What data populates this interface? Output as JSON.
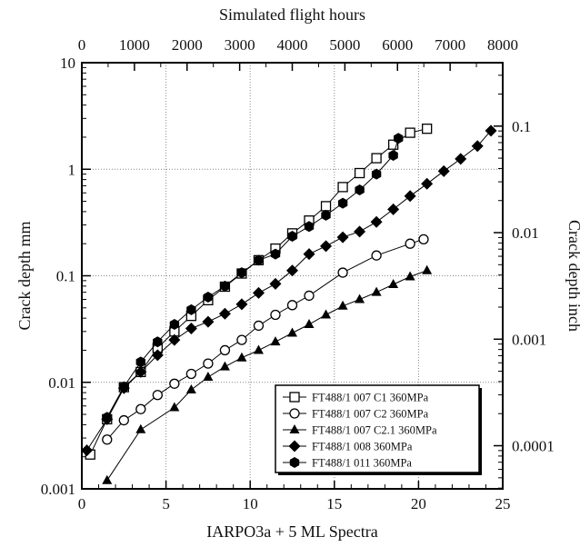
{
  "chart_data": {
    "type": "scatter",
    "xlabel": "IARPO3a + 5 ML Spectra",
    "ylabel": "Crack depth mm",
    "top_xlabel": "Simulated flight hours",
    "right_ylabel": "Crack depth inch",
    "xlim": [
      0,
      25
    ],
    "ylim": [
      0.001,
      10
    ],
    "yscale": "log",
    "xticks": [
      "0",
      "5",
      "10",
      "15",
      "20",
      "25"
    ],
    "yticks": [
      "0.001",
      "0.01",
      "0.1",
      "1",
      "10"
    ],
    "top_xticks": [
      "0",
      "1000",
      "2000",
      "3000",
      "4000",
      "5000",
      "6000",
      "7000",
      "8000"
    ],
    "top_xlim": [
      0,
      8000
    ],
    "right_yticks": [
      "0.0001",
      "0.001",
      "0.01",
      "0.1"
    ],
    "grid": true,
    "legend_position": "bottom-right",
    "series": [
      {
        "name": "FT488/1 007 C1 360MPa",
        "marker": "square-open",
        "x": [
          0.5,
          1.5,
          2.5,
          3.5,
          4.5,
          5.5,
          6.5,
          7.5,
          8.5,
          9.5,
          10.5,
          11.5,
          12.5,
          13.5,
          14.5,
          15.5,
          16.5,
          17.5,
          18.5,
          19.5,
          20.5
        ],
        "y": [
          0.0021,
          0.0045,
          0.009,
          0.0125,
          0.021,
          0.03,
          0.042,
          0.059,
          0.079,
          0.105,
          0.14,
          0.18,
          0.25,
          0.33,
          0.45,
          0.68,
          0.92,
          1.27,
          1.7,
          2.2,
          2.4
        ]
      },
      {
        "name": "FT488/1 007 C2 360MPa",
        "marker": "circle-open",
        "x": [
          1.5,
          2.5,
          3.5,
          4.5,
          5.5,
          6.5,
          7.5,
          8.5,
          9.5,
          10.5,
          11.5,
          12.5,
          13.5,
          15.5,
          17.5,
          19.5,
          20.3
        ],
        "y": [
          0.0029,
          0.0044,
          0.0056,
          0.0076,
          0.0097,
          0.012,
          0.015,
          0.02,
          0.025,
          0.034,
          0.043,
          0.053,
          0.065,
          0.107,
          0.155,
          0.2,
          0.22
        ]
      },
      {
        "name": "FT488/1 007 C2.1 360MPa",
        "marker": "triangle-filled",
        "x": [
          1.5,
          3.5,
          5.5,
          6.5,
          7.5,
          8.5,
          9.5,
          10.5,
          11.5,
          12.5,
          13.5,
          14.5,
          15.5,
          16.5,
          17.5,
          18.5,
          19.5,
          20.5
        ],
        "y": [
          0.0012,
          0.0036,
          0.0058,
          0.0085,
          0.0112,
          0.014,
          0.017,
          0.02,
          0.024,
          0.029,
          0.035,
          0.043,
          0.052,
          0.06,
          0.07,
          0.083,
          0.098,
          0.112
        ]
      },
      {
        "name": "FT488/1 008 360MPa",
        "marker": "diamond-filled",
        "x": [
          0.3,
          1.5,
          2.5,
          3.5,
          4.5,
          5.5,
          6.5,
          7.5,
          8.5,
          9.5,
          10.5,
          11.5,
          12.5,
          13.5,
          14.5,
          15.5,
          16.5,
          17.5,
          18.5,
          19.5,
          20.5,
          21.5,
          22.5,
          23.5,
          24.3
        ],
        "y": [
          0.0023,
          0.0045,
          0.0088,
          0.0125,
          0.018,
          0.025,
          0.032,
          0.037,
          0.044,
          0.054,
          0.069,
          0.084,
          0.112,
          0.16,
          0.19,
          0.23,
          0.26,
          0.32,
          0.42,
          0.56,
          0.73,
          0.96,
          1.25,
          1.65,
          2.3
        ]
      },
      {
        "name": "FT488/1 011 360MPa",
        "marker": "hexagon-filled",
        "x": [
          1.5,
          2.5,
          3.5,
          4.5,
          5.5,
          6.5,
          7.5,
          8.5,
          9.5,
          10.5,
          11.5,
          12.5,
          13.5,
          14.5,
          15.5,
          16.5,
          17.5,
          18.5,
          18.8
        ],
        "y": [
          0.0047,
          0.0091,
          0.0155,
          0.024,
          0.035,
          0.048,
          0.063,
          0.08,
          0.107,
          0.14,
          0.16,
          0.235,
          0.29,
          0.37,
          0.48,
          0.64,
          0.9,
          1.35,
          1.95
        ]
      }
    ]
  }
}
